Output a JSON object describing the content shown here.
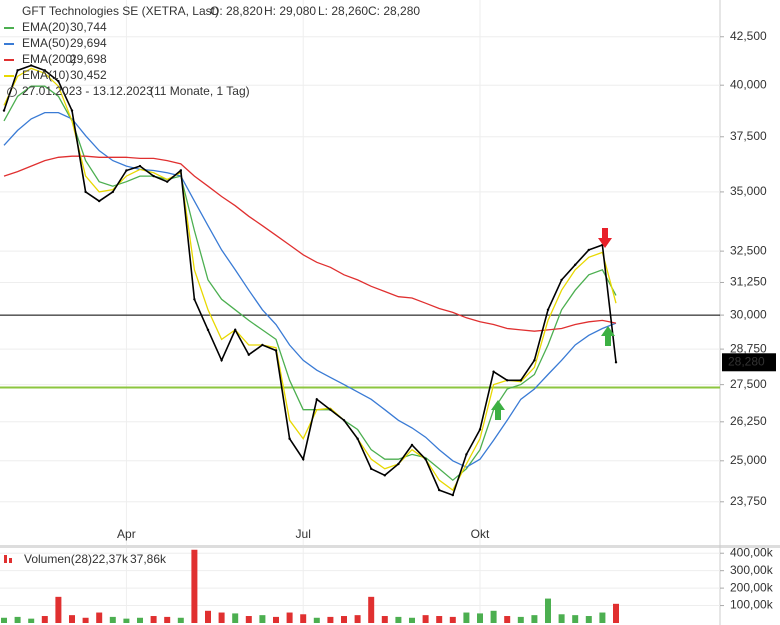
{
  "chart_data": [
    {
      "type": "line",
      "title": "GFT Technologies SE (XETRA, Last)",
      "header_stats": [
        "O: 28,820",
        "H: 29,080",
        "L: 28,260",
        "C: 28,280"
      ],
      "period": "27.01.2023 - 13.12.2023",
      "period_note": "(11 Monate, 1 Tag)",
      "log_scale": true,
      "grid": true,
      "legend": "top-left",
      "categories": [
        null,
        null,
        null,
        null,
        null,
        null,
        null,
        null,
        null,
        "Apr",
        null,
        null,
        null,
        null,
        null,
        null,
        null,
        null,
        null,
        null,
        null,
        null,
        "Jul",
        null,
        null,
        null,
        null,
        null,
        null,
        null,
        null,
        null,
        null,
        null,
        null,
        "Okt",
        null,
        null,
        null,
        null,
        null,
        null,
        null,
        null,
        null,
        null
      ],
      "values": [
        38750,
        40750,
        41000,
        40750,
        40200,
        38750,
        35000,
        34600,
        35000,
        35950,
        36150,
        35700,
        35450,
        35950,
        30600,
        29450,
        28350,
        29450,
        28550,
        28900,
        28700,
        25700,
        25050,
        27000,
        26650,
        26300,
        25700,
        24750,
        24550,
        24900,
        25500,
        25050,
        24100,
        23950,
        25200,
        26000,
        27950,
        27650,
        27650,
        28350,
        30200,
        31350,
        31950,
        32550,
        32750,
        28280
      ],
      "value_labels": [
        null,
        null,
        null,
        null,
        null,
        null,
        null,
        null,
        null,
        null,
        null,
        null,
        null,
        null,
        null,
        null,
        null,
        null,
        null,
        null,
        null,
        null,
        null,
        null,
        null,
        null,
        null,
        null,
        null,
        null,
        null,
        null,
        null,
        null,
        null,
        null,
        null,
        null,
        null,
        null,
        null,
        null,
        null,
        null,
        null,
        "28,280"
      ],
      "color": "#000000",
      "series": [
        {
          "name": "EMA(20)",
          "legend_value": "30,744",
          "color": "#4caf50",
          "values": [
            38250,
            39450,
            39950,
            39950,
            39450,
            38250,
            36400,
            35450,
            35250,
            35450,
            35700,
            35700,
            35550,
            35700,
            33350,
            31350,
            30600,
            30200,
            29800,
            29450,
            29100,
            27650,
            26650,
            26650,
            26650,
            26300,
            26000,
            25350,
            25050,
            25050,
            25200,
            25100,
            24750,
            24400,
            24750,
            25350,
            26650,
            27350,
            27500,
            27850,
            28900,
            30200,
            30950,
            31550,
            31750,
            30750
          ]
        },
        {
          "name": "EMA(50)",
          "legend_value": "29,694",
          "color": "#3a7bd5",
          "values": [
            37100,
            37800,
            38350,
            38650,
            38650,
            38350,
            37550,
            36850,
            36400,
            36150,
            36000,
            35950,
            35850,
            35700,
            34600,
            33550,
            32550,
            31750,
            30950,
            30200,
            29650,
            28900,
            28350,
            28000,
            27750,
            27500,
            27250,
            27000,
            26650,
            26300,
            26050,
            25750,
            25350,
            25000,
            24800,
            25050,
            25650,
            26300,
            27000,
            27350,
            27850,
            28350,
            28900,
            29250,
            29500,
            29700
          ]
        },
        {
          "name": "EMA(200)",
          "legend_value": "29,698",
          "color": "#e03030",
          "values": [
            35700,
            35900,
            36150,
            36400,
            36550,
            36600,
            36600,
            36550,
            36550,
            36550,
            36500,
            36500,
            36400,
            36250,
            35700,
            35250,
            34800,
            34400,
            33950,
            33550,
            33150,
            32750,
            32350,
            32050,
            31850,
            31550,
            31350,
            31100,
            30900,
            30700,
            30650,
            30450,
            30250,
            30100,
            29900,
            29750,
            29650,
            29500,
            29450,
            29400,
            29450,
            29500,
            29650,
            29750,
            29800,
            29700
          ]
        },
        {
          "name": "EMA(10)",
          "legend_value": "30,452",
          "color": "#e8d800",
          "values": [
            39000,
            40450,
            40850,
            40600,
            39950,
            38250,
            35700,
            35000,
            35100,
            35700,
            36000,
            35850,
            35550,
            35850,
            31750,
            30200,
            29100,
            29450,
            28900,
            28900,
            28800,
            26300,
            25700,
            26650,
            26700,
            26300,
            25700,
            25050,
            24750,
            24900,
            25350,
            25050,
            24400,
            24100,
            24900,
            25700,
            27500,
            27650,
            27600,
            28100,
            29800,
            30950,
            31750,
            32250,
            32450,
            30450
          ]
        }
      ],
      "hlines": [
        {
          "value": 30000,
          "color": "#000000"
        },
        {
          "value": 27400,
          "color": "#8cc63f"
        }
      ],
      "ylim": [
        22500,
        44500
      ],
      "yticks": [
        {
          "value": 23750,
          "label": "23,750"
        },
        {
          "value": 25000,
          "label": "25,000"
        },
        {
          "value": 26250,
          "label": "26,250"
        },
        {
          "value": 27500,
          "label": "27,500"
        },
        {
          "value": 28750,
          "label": "28,750"
        },
        {
          "value": 30000,
          "label": "30,000"
        },
        {
          "value": 31250,
          "label": "31,250"
        },
        {
          "value": 32500,
          "label": "32,500"
        },
        {
          "value": 35000,
          "label": "35,000"
        },
        {
          "value": 37500,
          "label": "37,500"
        },
        {
          "value": 40000,
          "label": "40,000"
        },
        {
          "value": 42500,
          "label": "42,500"
        }
      ]
    },
    {
      "type": "bar",
      "title": "Volumen(28)",
      "legend_values": [
        "22,37k",
        "37,86k"
      ],
      "legend_colors": [
        "#e03030",
        "#e8d800"
      ],
      "up_color": "#4caf50",
      "down_color": "#e03030",
      "values": [
        30000,
        35000,
        25000,
        40000,
        150000,
        45000,
        30000,
        60000,
        35000,
        25000,
        30000,
        40000,
        35000,
        30000,
        420000,
        70000,
        60000,
        55000,
        40000,
        45000,
        35000,
        60000,
        50000,
        30000,
        35000,
        40000,
        45000,
        150000,
        40000,
        35000,
        30000,
        45000,
        40000,
        35000,
        60000,
        55000,
        70000,
        40000,
        35000,
        45000,
        140000,
        50000,
        45000,
        40000,
        60000,
        110000
      ],
      "ylim": [
        0,
        430000
      ],
      "yticks": [
        {
          "value": 100000,
          "label": "100,00k"
        },
        {
          "value": 200000,
          "label": "200,00k"
        },
        {
          "value": 300000,
          "label": "300,00k"
        },
        {
          "value": 400000,
          "label": "400,00k"
        }
      ]
    }
  ]
}
